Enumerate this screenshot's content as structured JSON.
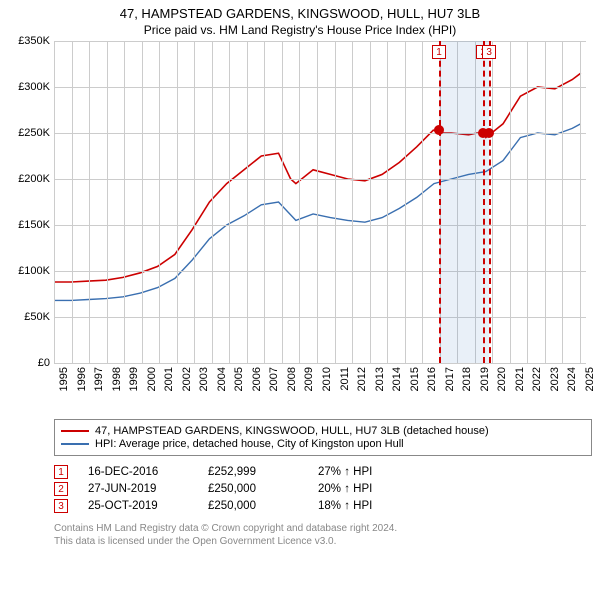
{
  "title": "47, HAMPSTEAD GARDENS, KINGSWOOD, HULL, HU7 3LB",
  "subtitle": "Price paid vs. HM Land Registry's House Price Index (HPI)",
  "chart": {
    "type": "line",
    "background_color": "#ffffff",
    "grid_color": "#cccccc",
    "x": {
      "min": 1995,
      "max": 2025.8,
      "ticks": [
        1995,
        1996,
        1997,
        1998,
        1999,
        2000,
        2001,
        2002,
        2003,
        2004,
        2005,
        2006,
        2007,
        2008,
        2009,
        2010,
        2011,
        2012,
        2013,
        2014,
        2015,
        2016,
        2017,
        2018,
        2019,
        2020,
        2021,
        2022,
        2023,
        2024,
        2025
      ],
      "label_fontsize": 11,
      "label_rotation": -90
    },
    "y": {
      "min": 0,
      "max": 350000,
      "ticks": [
        0,
        50000,
        100000,
        150000,
        200000,
        250000,
        300000,
        350000
      ],
      "tick_labels": [
        "£0",
        "£50K",
        "£100K",
        "£150K",
        "£200K",
        "£250K",
        "£300K",
        "£350K"
      ],
      "label_fontsize": 11
    },
    "series": [
      {
        "name": "property",
        "label": "47, HAMPSTEAD GARDENS, KINGSWOOD, HULL, HU7 3LB (detached house)",
        "color": "#cc0000",
        "line_width": 1.6,
        "x": [
          1995,
          1996,
          1997,
          1998,
          1999,
          2000,
          2001,
          2002,
          2003,
          2004,
          2005,
          2006,
          2007,
          2008,
          2008.7,
          2009,
          2010,
          2011,
          2012,
          2013,
          2014,
          2015,
          2016,
          2016.96,
          2017.5,
          2018,
          2019,
          2019.49,
          2019.82,
          2020,
          2021,
          2022,
          2023,
          2024,
          2025,
          2025.5
        ],
        "y": [
          88000,
          88000,
          89000,
          90000,
          93000,
          98000,
          105000,
          118000,
          145000,
          175000,
          195000,
          210000,
          225000,
          228000,
          200000,
          195000,
          210000,
          205000,
          200000,
          198000,
          205000,
          218000,
          235000,
          252999,
          250000,
          250000,
          248000,
          250000,
          250000,
          245000,
          260000,
          290000,
          300000,
          298000,
          308000,
          315000
        ]
      },
      {
        "name": "hpi",
        "label": "HPI: Average price, detached house, City of Kingston upon Hull",
        "color": "#3a6fb0",
        "line_width": 1.4,
        "x": [
          1995,
          1996,
          1997,
          1998,
          1999,
          2000,
          2001,
          2002,
          2003,
          2004,
          2005,
          2006,
          2007,
          2008,
          2009,
          2010,
          2011,
          2012,
          2013,
          2014,
          2015,
          2016,
          2017,
          2018,
          2019,
          2020,
          2021,
          2022,
          2023,
          2024,
          2025,
          2025.5
        ],
        "y": [
          68000,
          68000,
          69000,
          70000,
          72000,
          76000,
          82000,
          92000,
          112000,
          135000,
          150000,
          160000,
          172000,
          175000,
          155000,
          162000,
          158000,
          155000,
          153000,
          158000,
          168000,
          180000,
          195000,
          200000,
          205000,
          208000,
          220000,
          245000,
          250000,
          248000,
          255000,
          260000
        ]
      }
    ],
    "event_band": {
      "start": 2016.96,
      "end": 2019.82,
      "color": "rgba(70,130,200,0.12)"
    },
    "event_lines": [
      {
        "num": "1",
        "x": 2016.96
      },
      {
        "num": "2",
        "x": 2019.49
      },
      {
        "num": "3",
        "x": 2019.82
      }
    ],
    "data_points": [
      {
        "x": 2016.96,
        "y": 252999
      },
      {
        "x": 2019.49,
        "y": 250000
      },
      {
        "x": 2019.82,
        "y": 250000
      }
    ],
    "marker_color": "#cc0000",
    "marker_size": 10
  },
  "legend": {
    "items": [
      {
        "color": "#cc0000",
        "label": "47, HAMPSTEAD GARDENS, KINGSWOOD, HULL, HU7 3LB (detached house)"
      },
      {
        "color": "#3a6fb0",
        "label": "HPI: Average price, detached house, City of Kingston upon Hull"
      }
    ],
    "fontsize": 11,
    "border_color": "#888888"
  },
  "events_table": {
    "rows": [
      {
        "num": "1",
        "date": "16-DEC-2016",
        "price": "£252,999",
        "pct": "27% ↑ HPI"
      },
      {
        "num": "2",
        "date": "27-JUN-2019",
        "price": "£250,000",
        "pct": "20% ↑ HPI"
      },
      {
        "num": "3",
        "date": "25-OCT-2019",
        "price": "£250,000",
        "pct": "18% ↑ HPI"
      }
    ],
    "fontsize": 11.5,
    "num_border_color": "#cc0000"
  },
  "footer": {
    "line1": "Contains HM Land Registry data © Crown copyright and database right 2024.",
    "line2": "This data is licensed under the Open Government Licence v3.0.",
    "color": "#888888",
    "fontsize": 10
  }
}
